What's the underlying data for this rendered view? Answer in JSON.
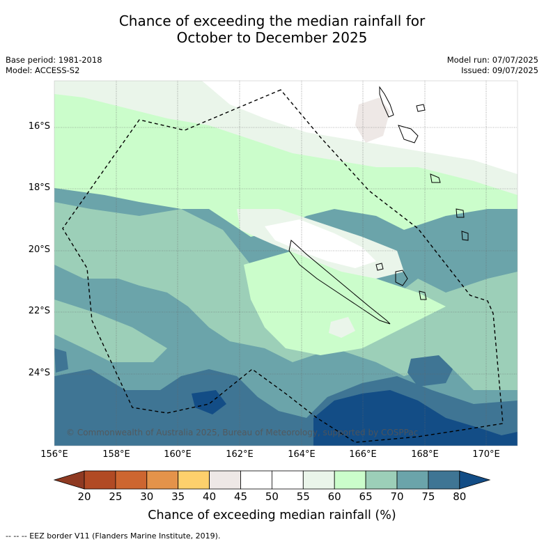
{
  "title_line1": "Chance of exceeding the median rainfall for",
  "title_line2": "October to December 2025",
  "meta_left": {
    "base_period": "Base period: 1981-2018",
    "model": "Model: ACCESS-S2"
  },
  "meta_right": {
    "model_run": "Model run: 07/07/2025",
    "issued": "Issued: 09/07/2025"
  },
  "map": {
    "lon_labels": [
      "156°E",
      "158°E",
      "160°E",
      "162°E",
      "164°E",
      "166°E",
      "168°E",
      "170°E"
    ],
    "lat_labels": [
      "16°S",
      "18°S",
      "20°S",
      "22°S",
      "24°S"
    ],
    "copyright": "© Commonwealth of Australia 2025, Bureau of Meteorology, supported by COSPPac"
  },
  "colorbar": {
    "ticks": [
      "20",
      "25",
      "30",
      "35",
      "40",
      "45",
      "50",
      "55",
      "60",
      "65",
      "70",
      "75",
      "80"
    ],
    "colors": [
      "#8f3a22",
      "#b14a24",
      "#cd6630",
      "#e4934a",
      "#fdd06c",
      "#eee8e6",
      "#ffffff",
      "#fefffe",
      "#eaf5ea",
      "#cbfdcb",
      "#9ccfb8",
      "#6ba4aa",
      "#3f7594",
      "#134d86"
    ],
    "title": "Chance of exceeding median rainfall (%)"
  },
  "footnote": "--  --  -- EEZ border V11 (Flanders Marine Institute, 2019)."
}
